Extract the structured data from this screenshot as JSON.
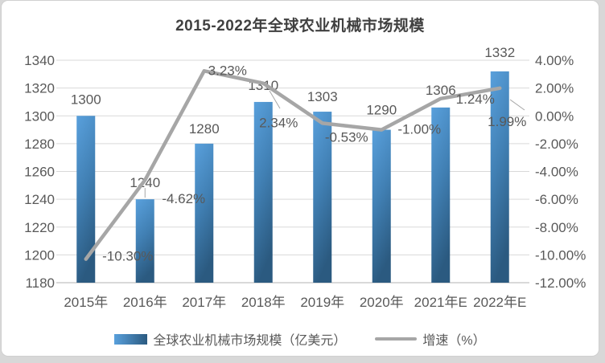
{
  "title": "2015-2022年全球农业机械市场规模",
  "chart_data": {
    "type": "combo-bar-line",
    "categories": [
      "2015年",
      "2016年",
      "2017年",
      "2018年",
      "2019年",
      "2020年",
      "2021年E",
      "2022年E"
    ],
    "series": [
      {
        "name": "全球农业机械市场规模（亿美元）",
        "type": "bar",
        "axis": "left",
        "values": [
          1300,
          1240,
          1280,
          1310,
          1303,
          1290,
          1306,
          1332
        ],
        "labels": [
          "1300",
          "1240",
          "1280",
          "1310",
          "1303",
          "1290",
          "1306",
          "1332"
        ],
        "color_top": "#59a0dc",
        "color_mid": "#4180b4",
        "color_bottom": "#2b5a80"
      },
      {
        "name": "增速（%）",
        "type": "line",
        "axis": "right",
        "values": [
          -10.3,
          -4.62,
          3.23,
          2.34,
          -0.53,
          -1.0,
          1.24,
          1.99
        ],
        "labels": [
          "-10.30%",
          "-4.62%",
          "3.23%",
          "2.34%",
          "-0.53%",
          "-1.00%",
          "1.24%",
          "1.99%"
        ],
        "color": "#a6a6a6"
      }
    ],
    "left_axis": {
      "min": 1180,
      "max": 1340,
      "step": 20,
      "ticks": [
        "1340",
        "1320",
        "1300",
        "1280",
        "1260",
        "1240",
        "1220",
        "1200",
        "1180"
      ]
    },
    "right_axis": {
      "min": -12,
      "max": 4,
      "step": 2,
      "ticks": [
        "4.00%",
        "2.00%",
        "0.00%",
        "-2.00%",
        "-4.00%",
        "-6.00%",
        "-8.00%",
        "-10.00%",
        "-12.00%"
      ]
    },
    "grid": true,
    "legend_position": "bottom",
    "title_color": "#404040",
    "text_color": "#595959",
    "gridline_color": "#d9d9d9"
  }
}
